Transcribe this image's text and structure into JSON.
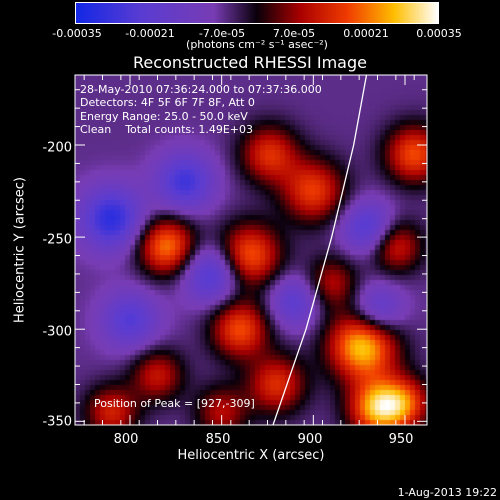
{
  "colorbar": {
    "ticks": [
      "-0.00035",
      "-0.00021",
      "-7.0e-05",
      "7.0e-05",
      "0.00021",
      "0.00035"
    ],
    "units": "(photons cm⁻² s⁻¹ asec⁻²)",
    "range": [
      -0.00035,
      0.00035
    ]
  },
  "chart_data": {
    "type": "heatmap",
    "title": "Reconstructed RHESSI Image",
    "xlabel": "Heliocentric X (arcsec)",
    "ylabel": "Heliocentric Y (arcsec)",
    "xlim": [
      770,
      962
    ],
    "ylim": [
      -352,
      -162
    ],
    "xticks": [
      "800",
      "850",
      "900",
      "950"
    ],
    "yticks": [
      "-200",
      "-250",
      "-300",
      "-350"
    ],
    "xtick_values": [
      800,
      850,
      900,
      950
    ],
    "ytick_values": [
      -200,
      -250,
      -300,
      -350
    ],
    "annotations": {
      "line1": "28-May-2010 07:36:24.000 to 07:37:36.000",
      "line2": "Detectors: 4F 5F 6F 7F 8F, Att 0",
      "line3": "Energy Range: 25.0 - 50.0 keV",
      "line4": "Clean    Total counts: 1.49E+03",
      "peak": "Position of Peak = [927,-309]"
    },
    "peak": [
      927,
      -309
    ],
    "limb_curve": [
      [
        929,
        -162
      ],
      [
        922,
        -200
      ],
      [
        910,
        -250
      ],
      [
        896,
        -300
      ],
      [
        878,
        -352
      ]
    ],
    "sources": [
      {
        "x": 927,
        "y": -309,
        "v": 1.0,
        "s": 13
      },
      {
        "x": 935,
        "y": -343,
        "v": 0.9,
        "s": 11
      },
      {
        "x": 955,
        "y": -205,
        "v": 0.7,
        "s": 11
      },
      {
        "x": 900,
        "y": -225,
        "v": 0.65,
        "s": 12
      },
      {
        "x": 876,
        "y": -205,
        "v": 0.6,
        "s": 11
      },
      {
        "x": 865,
        "y": -260,
        "v": 0.75,
        "s": 12
      },
      {
        "x": 860,
        "y": -300,
        "v": 0.7,
        "s": 11
      },
      {
        "x": 820,
        "y": -255,
        "v": 0.8,
        "s": 11
      },
      {
        "x": 815,
        "y": -325,
        "v": 0.5,
        "s": 10
      },
      {
        "x": 880,
        "y": -330,
        "v": 0.6,
        "s": 11
      },
      {
        "x": 910,
        "y": -275,
        "v": 0.45,
        "s": 10
      },
      {
        "x": 945,
        "y": -255,
        "v": 0.55,
        "s": 10
      },
      {
        "x": 790,
        "y": -345,
        "v": 0.55,
        "s": 10
      },
      {
        "x": 950,
        "y": -340,
        "v": 0.6,
        "s": 10
      },
      {
        "x": 850,
        "y": -345,
        "v": 0.45,
        "s": 10
      },
      {
        "x": 830,
        "y": -220,
        "v": -0.6,
        "s": 11
      },
      {
        "x": 790,
        "y": -240,
        "v": -0.7,
        "s": 12
      },
      {
        "x": 845,
        "y": -270,
        "v": -0.6,
        "s": 11
      },
      {
        "x": 930,
        "y": -245,
        "v": -0.55,
        "s": 10
      },
      {
        "x": 890,
        "y": -285,
        "v": -0.45,
        "s": 10
      },
      {
        "x": 935,
        "y": -290,
        "v": -0.5,
        "s": 10
      },
      {
        "x": 800,
        "y": -295,
        "v": -0.5,
        "s": 11
      }
    ]
  },
  "timestamp": "1-Aug-2013 19:22"
}
